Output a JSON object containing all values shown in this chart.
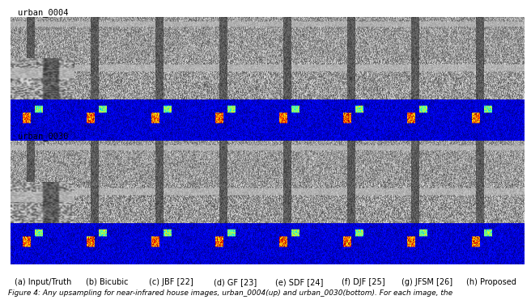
{
  "title": "",
  "caption": "Figure 4: Any upsampling for near-infrared house images, urban_0004(up) and urban_0030(bottom). For each image, the",
  "row1_label": "urban_0004",
  "row2_label": "urban_0030",
  "col_labels": [
    "(a) Input/Truth",
    "(b) Bicubic",
    "(c) JBF [22]",
    "(d) GF [23]",
    "(e) SDF [24]",
    "(f) DJF [25]",
    "(g) JFSM [26]",
    "(h) Proposed"
  ],
  "n_cols": 8,
  "n_rows_per_scene": 3,
  "background_color": "#ffffff",
  "label_fontsize": 7,
  "caption_fontsize": 6.5,
  "scene_label_fontsize": 7.5,
  "fig_width": 6.4,
  "fig_height": 3.52
}
